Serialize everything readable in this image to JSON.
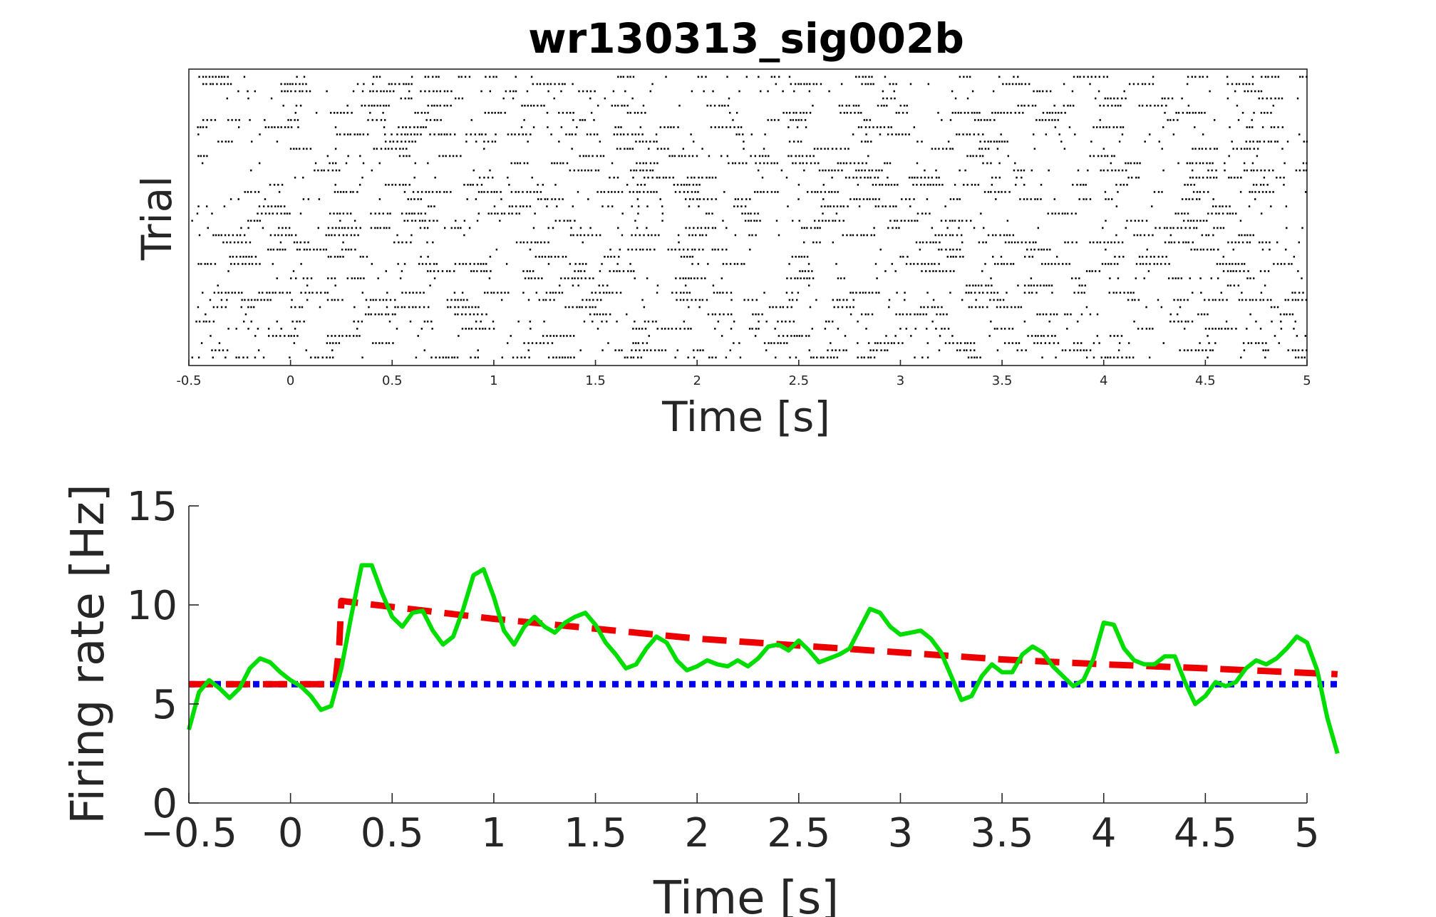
{
  "title": "wr130313_sig002b",
  "raster": {
    "xlabel": "Time [s]",
    "ylabel": "Trial",
    "xlim": [
      -0.5,
      5
    ],
    "xticks": [
      -0.5,
      0,
      0.5,
      1,
      1.5,
      2,
      2.5,
      3,
      3.5,
      4,
      4.5,
      5
    ],
    "xtick_labels": [
      "-0.5",
      "0",
      "0.5",
      "1",
      "1.5",
      "2",
      "2.5",
      "3",
      "3.5",
      "4",
      "4.5",
      "5"
    ],
    "num_trials": 40
  },
  "rate": {
    "xlabel": "Time [s]",
    "ylabel": "Firing rate [Hz]",
    "xtick_labels": [
      "−0.5",
      "0",
      "0.5",
      "1",
      "1.5",
      "2",
      "2.5",
      "3",
      "3.5",
      "4",
      "4.5",
      "5"
    ],
    "ytick_labels": [
      "0",
      "5",
      "10",
      "15"
    ]
  },
  "chart_data": [
    {
      "type": "scatter",
      "title": "wr130313_sig002b",
      "xlabel": "Time [s]",
      "ylabel": "Trial",
      "xlim": [
        -0.5,
        5
      ],
      "grid": false
    },
    {
      "type": "line",
      "xlabel": "Time [s]",
      "ylabel": "Firing rate [Hz]",
      "xlim": [
        -0.5,
        5
      ],
      "ylim": [
        0,
        15
      ],
      "xticks": [
        -0.5,
        0,
        0.5,
        1,
        1.5,
        2,
        2.5,
        3,
        3.5,
        4,
        4.5,
        5
      ],
      "yticks": [
        0,
        5,
        10,
        15
      ],
      "grid": false,
      "series": [
        {
          "color": "#00dd00",
          "style": "solid",
          "points": [
            [
              -0.5,
              3.7
            ],
            [
              -0.45,
              5.6
            ],
            [
              -0.4,
              6.2
            ],
            [
              -0.35,
              5.8
            ],
            [
              -0.3,
              5.3
            ],
            [
              -0.25,
              5.8
            ],
            [
              -0.2,
              6.8
            ],
            [
              -0.15,
              7.3
            ],
            [
              -0.1,
              7.1
            ],
            [
              -0.05,
              6.6
            ],
            [
              0,
              6.2
            ],
            [
              0.05,
              5.9
            ],
            [
              0.1,
              5.4
            ],
            [
              0.15,
              4.7
            ],
            [
              0.2,
              4.9
            ],
            [
              0.25,
              6.8
            ],
            [
              0.3,
              9.5
            ],
            [
              0.35,
              12.0
            ],
            [
              0.4,
              12.0
            ],
            [
              0.45,
              10.6
            ],
            [
              0.5,
              9.4
            ],
            [
              0.55,
              8.9
            ],
            [
              0.6,
              9.6
            ],
            [
              0.65,
              9.7
            ],
            [
              0.7,
              8.7
            ],
            [
              0.75,
              8.0
            ],
            [
              0.8,
              8.4
            ],
            [
              0.85,
              9.8
            ],
            [
              0.9,
              11.5
            ],
            [
              0.95,
              11.8
            ],
            [
              1.0,
              10.4
            ],
            [
              1.05,
              8.7
            ],
            [
              1.1,
              8.0
            ],
            [
              1.15,
              8.9
            ],
            [
              1.2,
              9.4
            ],
            [
              1.25,
              8.9
            ],
            [
              1.3,
              8.6
            ],
            [
              1.35,
              9.1
            ],
            [
              1.4,
              9.4
            ],
            [
              1.45,
              9.6
            ],
            [
              1.5,
              9.0
            ],
            [
              1.55,
              8.1
            ],
            [
              1.6,
              7.5
            ],
            [
              1.65,
              6.8
            ],
            [
              1.7,
              7.0
            ],
            [
              1.75,
              7.8
            ],
            [
              1.8,
              8.4
            ],
            [
              1.85,
              8.1
            ],
            [
              1.9,
              7.2
            ],
            [
              1.95,
              6.7
            ],
            [
              2.0,
              6.9
            ],
            [
              2.05,
              7.2
            ],
            [
              2.1,
              7.0
            ],
            [
              2.15,
              6.9
            ],
            [
              2.2,
              7.2
            ],
            [
              2.25,
              6.9
            ],
            [
              2.3,
              7.3
            ],
            [
              2.35,
              7.9
            ],
            [
              2.4,
              8.0
            ],
            [
              2.45,
              7.7
            ],
            [
              2.5,
              8.2
            ],
            [
              2.55,
              7.7
            ],
            [
              2.6,
              7.1
            ],
            [
              2.65,
              7.3
            ],
            [
              2.7,
              7.5
            ],
            [
              2.75,
              7.8
            ],
            [
              2.8,
              8.8
            ],
            [
              2.85,
              9.8
            ],
            [
              2.9,
              9.6
            ],
            [
              2.95,
              8.9
            ],
            [
              3.0,
              8.5
            ],
            [
              3.05,
              8.6
            ],
            [
              3.1,
              8.7
            ],
            [
              3.15,
              8.3
            ],
            [
              3.2,
              7.6
            ],
            [
              3.25,
              6.4
            ],
            [
              3.3,
              5.2
            ],
            [
              3.35,
              5.4
            ],
            [
              3.4,
              6.4
            ],
            [
              3.45,
              7.0
            ],
            [
              3.5,
              6.6
            ],
            [
              3.55,
              6.6
            ],
            [
              3.6,
              7.5
            ],
            [
              3.65,
              7.9
            ],
            [
              3.7,
              7.6
            ],
            [
              3.75,
              6.9
            ],
            [
              3.8,
              6.4
            ],
            [
              3.85,
              5.9
            ],
            [
              3.9,
              6.2
            ],
            [
              3.95,
              7.3
            ],
            [
              4.0,
              9.1
            ],
            [
              4.05,
              9.0
            ],
            [
              4.1,
              7.8
            ],
            [
              4.15,
              7.2
            ],
            [
              4.2,
              7.0
            ],
            [
              4.25,
              7.0
            ],
            [
              4.3,
              7.4
            ],
            [
              4.35,
              7.4
            ],
            [
              4.4,
              6.1
            ],
            [
              4.45,
              5.0
            ],
            [
              4.5,
              5.4
            ],
            [
              4.55,
              6.1
            ],
            [
              4.6,
              5.9
            ],
            [
              4.65,
              6.1
            ],
            [
              4.7,
              6.8
            ],
            [
              4.75,
              7.2
            ],
            [
              4.8,
              7.0
            ],
            [
              4.85,
              7.3
            ],
            [
              4.9,
              7.8
            ],
            [
              4.95,
              8.4
            ],
            [
              5.0,
              8.1
            ],
            [
              5.05,
              6.7
            ],
            [
              5.1,
              4.3
            ],
            [
              5.15,
              2.5
            ]
          ]
        },
        {
          "color": "#ee0000",
          "style": "dashed",
          "points": [
            [
              -0.5,
              6.0
            ],
            [
              0.22,
              6.0
            ],
            [
              0.24,
              8.0
            ],
            [
              0.25,
              10.2
            ],
            [
              0.5,
              9.9
            ],
            [
              1.0,
              9.3
            ],
            [
              1.5,
              8.8
            ],
            [
              2.0,
              8.3
            ],
            [
              2.5,
              7.95
            ],
            [
              3.0,
              7.6
            ],
            [
              3.5,
              7.25
            ],
            [
              4.0,
              7.0
            ],
            [
              4.5,
              6.8
            ],
            [
              5.15,
              6.5
            ]
          ]
        },
        {
          "color": "#0000ee",
          "style": "dotted",
          "points": [
            [
              -0.5,
              6.0
            ],
            [
              5.15,
              6.0
            ]
          ]
        }
      ]
    }
  ]
}
